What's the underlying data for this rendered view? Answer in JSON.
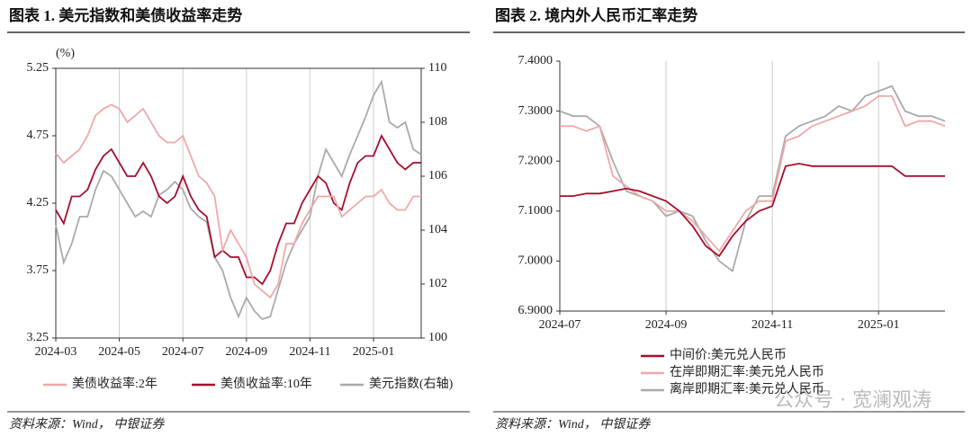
{
  "chart_data": [
    {
      "type": "line",
      "title": "图表 1. 美元指数和美债收益率走势",
      "ylabel": "(%)",
      "source": "资料来源：Wind， 中银证券",
      "categories": [
        "2024-03",
        null,
        null,
        null,
        null,
        null,
        null,
        null,
        "2024-05",
        null,
        null,
        null,
        null,
        null,
        null,
        null,
        "2024-07",
        null,
        null,
        null,
        null,
        null,
        null,
        null,
        "2024-09",
        null,
        null,
        null,
        null,
        null,
        null,
        null,
        "2024-11",
        null,
        null,
        null,
        null,
        null,
        null,
        null,
        "2025-01",
        null,
        null,
        null,
        null,
        null,
        null
      ],
      "series": [
        {
          "name": "美债收益率:2年",
          "color": "#f0a8a8",
          "axis": "y",
          "values": [
            4.62,
            4.55,
            4.6,
            4.65,
            4.75,
            4.9,
            4.95,
            4.98,
            4.95,
            4.85,
            4.9,
            4.95,
            4.85,
            4.75,
            4.7,
            4.7,
            4.75,
            4.6,
            4.45,
            4.4,
            4.3,
            3.9,
            4.05,
            3.95,
            3.85,
            3.65,
            3.6,
            3.55,
            3.65,
            3.95,
            3.95,
            4.1,
            4.2,
            4.3,
            4.3,
            4.3,
            4.15,
            4.2,
            4.25,
            4.3,
            4.3,
            4.35,
            4.25,
            4.2,
            4.2,
            4.3,
            4.3
          ]
        },
        {
          "name": "美债收益率:10年",
          "color": "#a50f2d",
          "axis": "y",
          "values": [
            4.2,
            4.1,
            4.3,
            4.3,
            4.35,
            4.5,
            4.6,
            4.65,
            4.55,
            4.45,
            4.45,
            4.55,
            4.45,
            4.3,
            4.25,
            4.3,
            4.45,
            4.3,
            4.2,
            4.15,
            3.85,
            3.9,
            3.85,
            3.85,
            3.7,
            3.7,
            3.65,
            3.75,
            3.95,
            4.1,
            4.1,
            4.25,
            4.35,
            4.45,
            4.4,
            4.25,
            4.2,
            4.4,
            4.55,
            4.6,
            4.6,
            4.75,
            4.65,
            4.55,
            4.5,
            4.55,
            4.55
          ]
        },
        {
          "name": "美元指数(右轴)",
          "color": "#aaaaaa",
          "axis": "y2",
          "values": [
            104.2,
            102.8,
            103.5,
            104.5,
            104.5,
            105.5,
            106.2,
            106,
            105.5,
            105,
            104.5,
            104.7,
            104.5,
            105.3,
            105.5,
            105.8,
            105.5,
            104.8,
            104.5,
            104.3,
            103,
            102.5,
            101.5,
            100.8,
            101.5,
            101,
            100.7,
            100.8,
            101.8,
            102.8,
            103.5,
            104,
            104.5,
            106,
            107,
            106.5,
            106,
            106.8,
            107.5,
            108.2,
            109,
            109.5,
            108,
            107.8,
            108,
            107,
            106.8
          ]
        }
      ],
      "ylim": [
        3.25,
        5.25
      ],
      "yticks": [
        3.25,
        3.75,
        4.25,
        4.75,
        5.25
      ],
      "y2lim": [
        100,
        110
      ],
      "y2ticks": [
        100,
        102,
        104,
        106,
        108,
        110
      ],
      "grid": "x",
      "legend": "bottom"
    },
    {
      "type": "line",
      "title": "图表 2. 境内外人民币汇率走势",
      "source": "资料来源：Wind， 中银证券",
      "categories": [
        "2024-07",
        null,
        null,
        null,
        null,
        null,
        null,
        null,
        "2024-09",
        null,
        null,
        null,
        null,
        null,
        null,
        null,
        "2024-11",
        null,
        null,
        null,
        null,
        null,
        null,
        null,
        "2025-01",
        null,
        null,
        null,
        null,
        null
      ],
      "series": [
        {
          "name": "中间价:美元兑人民币",
          "color": "#a50f2d",
          "axis": "y",
          "values": [
            7.13,
            7.13,
            7.135,
            7.135,
            7.14,
            7.145,
            7.14,
            7.13,
            7.12,
            7.1,
            7.07,
            7.03,
            7.01,
            7.05,
            7.08,
            7.1,
            7.11,
            7.19,
            7.195,
            7.19,
            7.19,
            7.19,
            7.19,
            7.19,
            7.19,
            7.19,
            7.17,
            7.17,
            7.17,
            7.17
          ]
        },
        {
          "name": "在岸即期汇率:美元兑人民币",
          "color": "#f0a8a8",
          "axis": "y",
          "values": [
            7.27,
            7.27,
            7.26,
            7.27,
            7.17,
            7.15,
            7.13,
            7.12,
            7.1,
            7.1,
            7.08,
            7.05,
            7.02,
            7.06,
            7.1,
            7.12,
            7.12,
            7.24,
            7.25,
            7.27,
            7.28,
            7.29,
            7.3,
            7.31,
            7.33,
            7.33,
            7.27,
            7.28,
            7.28,
            7.27
          ]
        },
        {
          "name": "离岸即期汇率:美元兑人民币",
          "color": "#aaaaaa",
          "axis": "y",
          "values": [
            7.3,
            7.29,
            7.29,
            7.27,
            7.2,
            7.14,
            7.13,
            7.12,
            7.09,
            7.1,
            7.09,
            7.04,
            7,
            6.98,
            7.08,
            7.13,
            7.13,
            7.25,
            7.27,
            7.28,
            7.29,
            7.31,
            7.3,
            7.33,
            7.34,
            7.35,
            7.3,
            7.29,
            7.29,
            7.28
          ]
        }
      ],
      "ylim": [
        6.9,
        7.4
      ],
      "yticks": [
        {
          "value": 6.9,
          "label": "6.9000"
        },
        {
          "value": 7.0,
          "label": "7.0000"
        },
        {
          "value": 7.1,
          "label": "7.1000"
        },
        {
          "value": 7.2,
          "label": "7.2000"
        },
        {
          "value": 7.3,
          "label": "7.3000"
        },
        {
          "value": 7.4,
          "label": "7.4000"
        }
      ],
      "grid": "x",
      "legend": "bottom"
    }
  ],
  "watermark": "公众号 · 宽澜观涛"
}
